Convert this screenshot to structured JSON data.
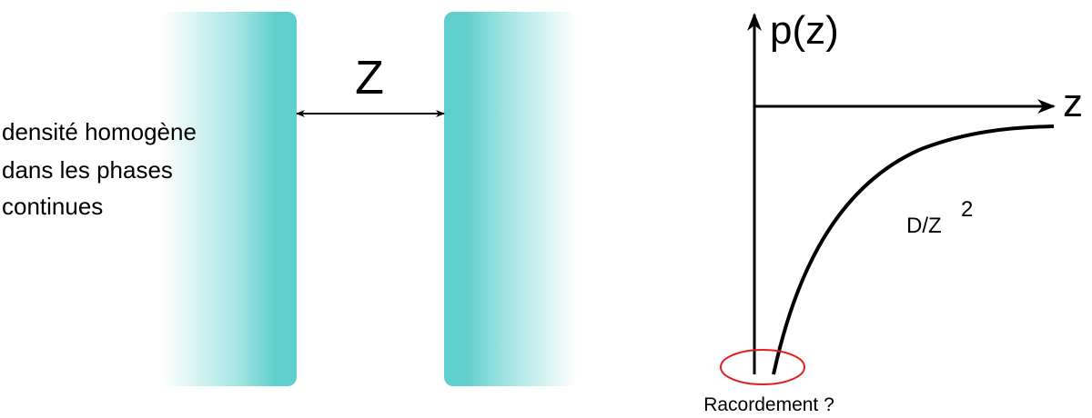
{
  "left_panel": {
    "gap_label": "Z",
    "description_lines": [
      "densité homogène",
      "dans les phases",
      "continues"
    ],
    "plate_color": "#5ecfcc"
  },
  "graph": {
    "y_axis_label": "p(z)",
    "x_axis_label": "z",
    "curve_label_base": "D/Z",
    "curve_label_exponent": "2",
    "matching_note": "Racordement ?",
    "highlight_color": "#e02020"
  }
}
